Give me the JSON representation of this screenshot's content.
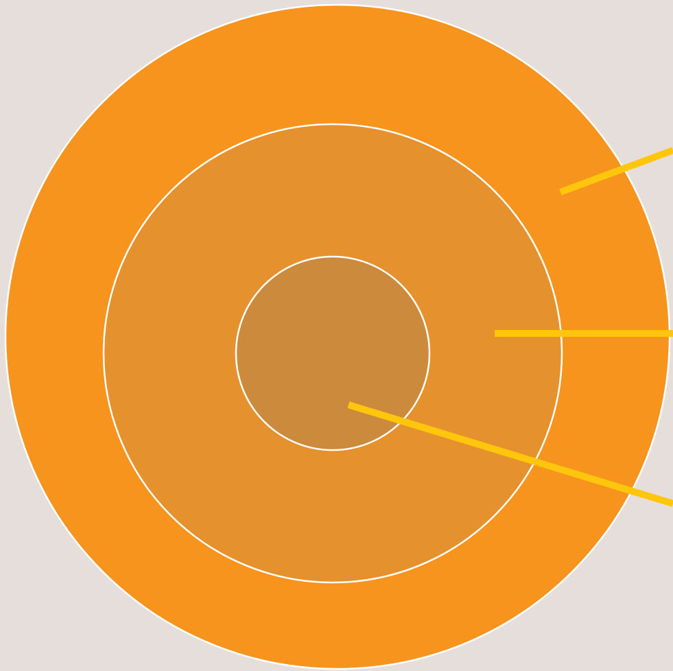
{
  "diagram": {
    "colors": {
      "background": "#e5dedb",
      "outer_ring": "#f7941e",
      "middle_ring": "#e5912e",
      "inner_circle": "#cc8a3c",
      "ring_outline": "#ffffff",
      "leader_lines": "#ffc60b"
    },
    "rings": [
      {
        "name": "outer-ring",
        "label": ""
      },
      {
        "name": "middle-ring",
        "label": ""
      },
      {
        "name": "inner-circle",
        "label": ""
      }
    ],
    "leader_lines": [
      {
        "name": "leader-line-outer"
      },
      {
        "name": "leader-line-middle"
      },
      {
        "name": "leader-line-inner"
      }
    ]
  }
}
